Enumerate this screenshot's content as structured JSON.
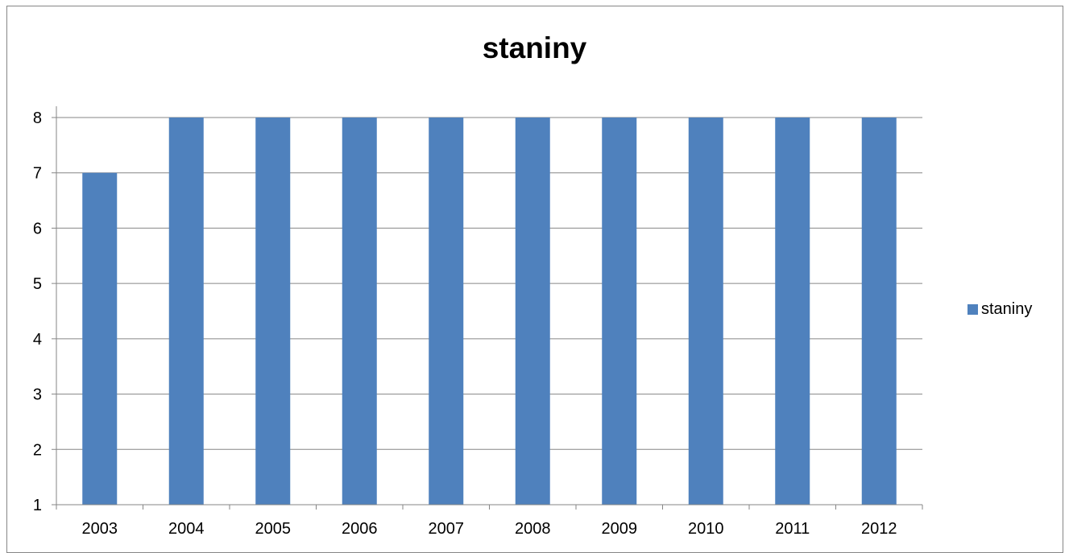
{
  "chart_data": {
    "type": "bar",
    "title": "staniny",
    "xlabel": "",
    "ylabel": "",
    "categories": [
      "2003",
      "2004",
      "2005",
      "2006",
      "2007",
      "2008",
      "2009",
      "2010",
      "2011",
      "2012"
    ],
    "series": [
      {
        "name": "staniny",
        "values": [
          7,
          8,
          8,
          8,
          8,
          8,
          8,
          8,
          8,
          8
        ],
        "color": "#4f81bd"
      }
    ],
    "ylim": [
      1,
      8
    ],
    "yticks": [
      "1",
      "2",
      "3",
      "4",
      "5",
      "6",
      "7",
      "8"
    ],
    "grid": true,
    "legend": {
      "position": "right",
      "entries": [
        "staniny"
      ]
    },
    "colors": {
      "bar": "#4f81bd",
      "grid": "#868686",
      "axis": "#868686",
      "frame": "#868686"
    }
  }
}
